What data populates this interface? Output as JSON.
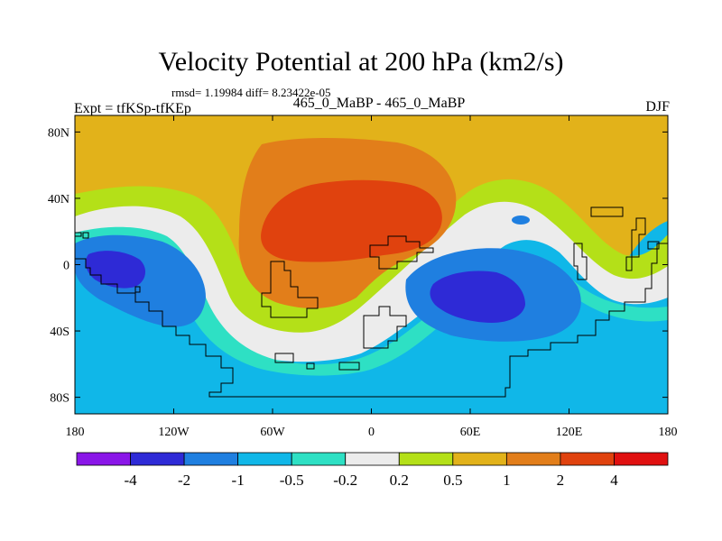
{
  "map": {
    "title": "Velocity Potential at 200 hPa (km2/s)",
    "stats_line": "rmsd= 1.19984 diff= 8.23422e-05",
    "left_string": "Expt = tfKSp-tfKEp",
    "center_string": "465_0_MaBP - 465_0_MaBP",
    "right_string": "DJF",
    "lat_labels": [
      "80N",
      "40N",
      "0",
      "40S",
      "80S"
    ],
    "lat_values": [
      80,
      40,
      0,
      -40,
      -80
    ],
    "lon_labels": [
      "180",
      "120W",
      "60W",
      "0",
      "60E",
      "120E",
      "180"
    ],
    "lon_values": [
      -180,
      -120,
      -60,
      0,
      60,
      120,
      180
    ],
    "lat_range": [
      -90,
      90
    ],
    "lon_range": [
      -180,
      180
    ]
  },
  "colorbar": {
    "labels": [
      "-4",
      "-2",
      "-1",
      "-0.5",
      "-0.2",
      "0.2",
      "0.5",
      "1",
      "2",
      "4"
    ],
    "colors": [
      "#8a16e8",
      "#2e2ad6",
      "#1f7fe0",
      "#10b7e8",
      "#2ee0c4",
      "#ececec",
      "#b4e018",
      "#e2b21a",
      "#e27e1a",
      "#e0420e",
      "#e01010"
    ]
  }
}
